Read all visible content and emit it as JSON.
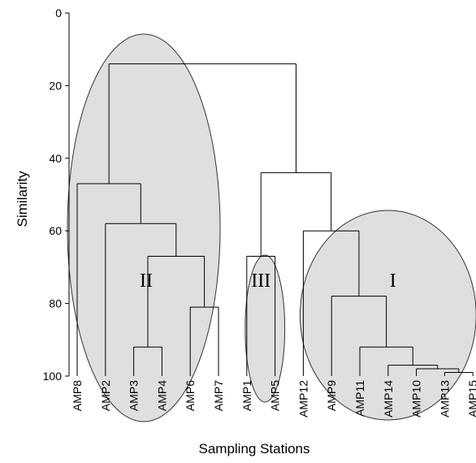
{
  "chart_data": {
    "type": "dendrogram",
    "xlabel": "Sampling Stations",
    "ylabel": "Similarity",
    "ylim": [
      0,
      100
    ],
    "yticks": [
      0,
      20,
      40,
      60,
      80,
      100
    ],
    "leaves": [
      "AMP8",
      "AMP2",
      "AMP3",
      "AMP4",
      "AMP6",
      "AMP7",
      "AMP1",
      "AMP5",
      "AMP12",
      "AMP9",
      "AMP11",
      "AMP14",
      "AMP10",
      "AMP13",
      "AMP15"
    ],
    "merges": [
      {
        "members": [
          "AMP3",
          "AMP4"
        ],
        "similarity": 92
      },
      {
        "members": [
          "AMP6",
          "AMP7"
        ],
        "similarity": 81
      },
      {
        "members": [
          "AMP3",
          "AMP4",
          "AMP6",
          "AMP7"
        ],
        "similarity": 67
      },
      {
        "members": [
          "AMP2",
          "AMP3",
          "AMP4",
          "AMP6",
          "AMP7"
        ],
        "similarity": 58
      },
      {
        "members": [
          "AMP8",
          "AMP2",
          "AMP3",
          "AMP4",
          "AMP6",
          "AMP7"
        ],
        "similarity": 47
      },
      {
        "members": [
          "AMP1",
          "AMP5"
        ],
        "similarity": 67
      },
      {
        "members": [
          "AMP13",
          "AMP15"
        ],
        "similarity": 99
      },
      {
        "members": [
          "AMP10",
          "AMP13",
          "AMP15"
        ],
        "similarity": 98
      },
      {
        "members": [
          "AMP14",
          "AMP10",
          "AMP13",
          "AMP15"
        ],
        "similarity": 97
      },
      {
        "members": [
          "AMP11",
          "AMP14",
          "AMP10",
          "AMP13",
          "AMP15"
        ],
        "similarity": 92
      },
      {
        "members": [
          "AMP9",
          "AMP11",
          "AMP14",
          "AMP10",
          "AMP13",
          "AMP15"
        ],
        "similarity": 78
      },
      {
        "members": [
          "AMP12",
          "AMP9",
          "AMP11",
          "AMP14",
          "AMP10",
          "AMP13",
          "AMP15"
        ],
        "similarity": 60
      },
      {
        "members": [
          "AMP1",
          "AMP5",
          "AMP12",
          "AMP9",
          "AMP11",
          "AMP14",
          "AMP10",
          "AMP13",
          "AMP15"
        ],
        "similarity": 44
      },
      {
        "members": [
          "all"
        ],
        "similarity": 14
      }
    ],
    "groups": [
      {
        "label": "II",
        "members": [
          "AMP8",
          "AMP2",
          "AMP3",
          "AMP4",
          "AMP6",
          "AMP7"
        ]
      },
      {
        "label": "III",
        "members": [
          "AMP1",
          "AMP5"
        ]
      },
      {
        "label": "I",
        "members": [
          "AMP12",
          "AMP9",
          "AMP11",
          "AMP14",
          "AMP10",
          "AMP13",
          "AMP15"
        ]
      }
    ]
  }
}
